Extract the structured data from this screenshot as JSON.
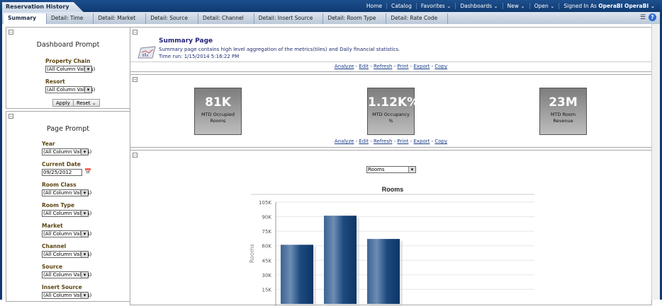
{
  "app": {
    "title": "Reservation History"
  },
  "global_nav": [
    "Home",
    "Catalog",
    "Favorites ⌄",
    "Dashboards ⌄",
    "New ⌄",
    "Open ⌄",
    "Signed In As"
  ],
  "user": "OperaBI OperaBI ⌄",
  "tabs": [
    "Summary",
    "Detail: Time",
    "Detail: Market",
    "Detail: Source",
    "Detail: Channel",
    "Detail: Insert Source",
    "Detail: Room Type",
    "Detail: Rate Code"
  ],
  "dashboard_prompt": {
    "title": "Dashboard Prompt",
    "fields": [
      {
        "label": "Property Chain",
        "value": "(All Column Values)"
      },
      {
        "label": "Resort",
        "value": "(All Column Values)"
      }
    ],
    "apply": "Apply",
    "reset": "Reset ⌄"
  },
  "page_prompt": {
    "title": "Page Prompt",
    "fields": [
      {
        "label": "Year",
        "value": "(All Column Values)"
      },
      {
        "label": "Current Date",
        "value": "09/25/2012"
      },
      {
        "label": "Room Class",
        "value": "(All Column Values)"
      },
      {
        "label": "Room Type",
        "value": "(All Column Values)"
      },
      {
        "label": "Market",
        "value": "(All Column Values)"
      },
      {
        "label": "Channel",
        "value": "(All Column Values)"
      },
      {
        "label": "Source",
        "value": "(All Column Values)"
      },
      {
        "label": "Insert Source",
        "value": "(All Column Values)"
      }
    ]
  },
  "summary": {
    "title": "Summary Page",
    "description": "Summary page contains high level aggregation of the metrics(tiles) and Daily financial statistics.",
    "time_run": "Time run: 1/15/2014 5:16:22 PM"
  },
  "links": {
    "analyze": "Analyze",
    "edit": "Edit",
    "refresh": "Refresh",
    "print": "Print",
    "export": "Export",
    "copy": "Copy"
  },
  "tiles": [
    {
      "value": "81K",
      "caption": "MTD Occupied Rooms"
    },
    {
      "value": "1.12K%",
      "caption": "MTD Occupancy %"
    },
    {
      "value": "23M",
      "caption": "MTD Room Revenue"
    }
  ],
  "chart_selector": "Rooms",
  "chart_data": {
    "type": "bar",
    "title": "Rooms",
    "ylabel": "Rooms",
    "xlabel": "",
    "ylim": [
      0,
      105000
    ],
    "yticks": [
      "15K",
      "30K",
      "45K",
      "60K",
      "75K",
      "90K",
      "105K"
    ],
    "values": [
      61000,
      91000,
      67000
    ],
    "color": "#1d4a7e",
    "grid": true
  }
}
